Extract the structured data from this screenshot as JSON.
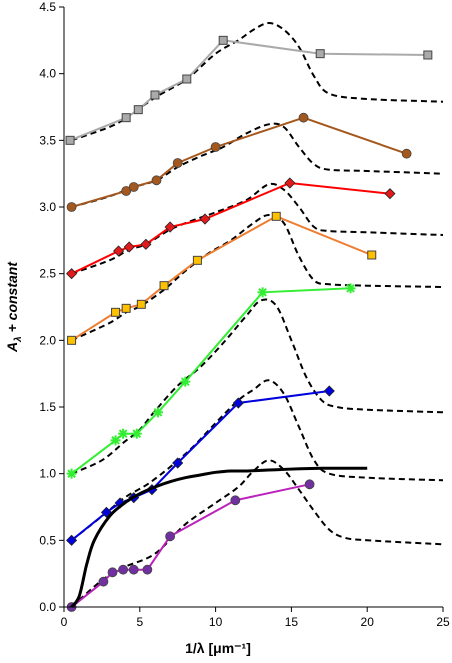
{
  "chart_data": {
    "type": "line",
    "xlabel": "1/λ    [μm⁻¹]",
    "ylabel": "Aλ + constant",
    "ylabel_main": "A",
    "ylabel_sub": "λ",
    "ylabel_rest": " + constant",
    "xlim": [
      0,
      25
    ],
    "ylim": [
      0,
      4.5
    ],
    "x_ticks": [
      0,
      5,
      10,
      15,
      20,
      25
    ],
    "y_ticks": [
      0.0,
      0.5,
      1.0,
      1.5,
      2.0,
      2.5,
      3.0,
      3.5,
      4.0,
      4.5
    ],
    "x_tick_labels": [
      "0",
      "5",
      "10",
      "15",
      "20",
      "25"
    ],
    "y_tick_labels": [
      "0.0",
      "0.5",
      "1.0",
      "1.5",
      "2.0",
      "2.5",
      "3.0",
      "3.5",
      "4.0",
      "4.5"
    ],
    "grid": false,
    "legend": "none",
    "series": [
      {
        "marker": "square",
        "color": "#aaaaaa",
        "marker_fill": "#aaaaaa",
        "x": [
          0.4,
          4.1,
          4.9,
          6.0,
          8.1,
          10.5,
          16.9,
          24.0
        ],
        "y": [
          3.5,
          3.67,
          3.73,
          3.84,
          3.96,
          4.25,
          4.15,
          4.14
        ]
      },
      {
        "marker": "circle",
        "color": "#a5581e",
        "marker_fill": "#a5581e",
        "x": [
          0.5,
          4.1,
          4.6,
          6.1,
          7.5,
          10.0,
          15.8,
          22.6
        ],
        "y": [
          3.0,
          3.12,
          3.15,
          3.2,
          3.33,
          3.45,
          3.67,
          3.4
        ]
      },
      {
        "marker": "diamond",
        "color": "#ff0000",
        "marker_fill": "#e31a1c",
        "x": [
          0.5,
          3.6,
          4.3,
          5.4,
          7.0,
          9.3,
          14.9,
          21.5
        ],
        "y": [
          2.5,
          2.67,
          2.7,
          2.72,
          2.85,
          2.91,
          3.18,
          3.1
        ]
      },
      {
        "marker": "square",
        "color": "#ed7d31",
        "marker_fill": "#ffc000",
        "x": [
          0.5,
          3.4,
          4.1,
          5.1,
          6.6,
          8.8,
          14.0,
          20.3
        ],
        "y": [
          2.0,
          2.21,
          2.24,
          2.27,
          2.41,
          2.6,
          2.93,
          2.64
        ]
      },
      {
        "marker": "star",
        "color": "#33ee33",
        "marker_fill": "#33ee33",
        "x": [
          0.5,
          3.4,
          3.9,
          4.8,
          6.2,
          8.0,
          13.1,
          18.9
        ],
        "y": [
          1.0,
          1.25,
          1.3,
          1.3,
          1.46,
          1.69,
          2.36,
          2.39
        ]
      },
      {
        "marker": "diamond",
        "color": "#0000dd",
        "marker_fill": "#0000dd",
        "x": [
          0.5,
          2.8,
          3.7,
          4.6,
          5.8,
          7.5,
          11.5,
          17.5
        ],
        "y": [
          0.5,
          0.71,
          0.78,
          0.82,
          0.88,
          1.08,
          1.53,
          1.62
        ]
      },
      {
        "marker": "circle",
        "color": "#bb22bb",
        "marker_fill": "#7030a0",
        "x": [
          0.5,
          2.6,
          3.2,
          3.9,
          4.6,
          5.5,
          7.0,
          11.3,
          16.2
        ],
        "y": [
          0.0,
          0.19,
          0.26,
          0.28,
          0.28,
          0.28,
          0.53,
          0.8,
          0.92
        ]
      },
      {
        "marker": "none",
        "color": "#000000",
        "dash": "solid",
        "x": [
          0.5,
          1.0,
          1.5,
          2.0,
          3.0,
          4.0,
          5.0,
          6.0,
          7.0,
          8.0,
          9.0,
          10.0,
          11.0,
          12.0,
          14.0,
          17.0,
          20.0
        ],
        "y": [
          0.0,
          0.08,
          0.32,
          0.5,
          0.68,
          0.78,
          0.85,
          0.9,
          0.94,
          0.97,
          0.99,
          1.01,
          1.02,
          1.02,
          1.03,
          1.04,
          1.04
        ]
      }
    ],
    "dashed_curves": [
      {
        "color": "#000000",
        "x": [
          0.5,
          3.0,
          4.1,
          6.0,
          8.1,
          10.0,
          11.5,
          12.5,
          13.5,
          14.5,
          15.5,
          16.5,
          17.5,
          20.0,
          25.0
        ],
        "y": [
          3.5,
          3.6,
          3.67,
          3.82,
          3.96,
          4.15,
          4.25,
          4.33,
          4.38,
          4.33,
          4.2,
          3.98,
          3.85,
          3.81,
          3.79
        ]
      },
      {
        "color": "#000000",
        "x": [
          0.5,
          3.0,
          4.6,
          6.1,
          7.5,
          9.0,
          10.5,
          12.0,
          13.5,
          14.5,
          15.5,
          16.5,
          17.5,
          20.0,
          25.0
        ],
        "y": [
          3.0,
          3.08,
          3.15,
          3.2,
          3.3,
          3.38,
          3.45,
          3.55,
          3.62,
          3.6,
          3.45,
          3.32,
          3.28,
          3.27,
          3.25
        ]
      },
      {
        "color": "#000000",
        "x": [
          0.5,
          3.0,
          4.3,
          5.4,
          7.0,
          8.5,
          10.0,
          12.0,
          13.5,
          14.5,
          15.5,
          16.5,
          17.5,
          20.0,
          25.0
        ],
        "y": [
          2.5,
          2.6,
          2.68,
          2.72,
          2.83,
          2.9,
          2.96,
          3.05,
          3.17,
          3.13,
          3.0,
          2.85,
          2.82,
          2.81,
          2.79
        ]
      },
      {
        "color": "#000000",
        "x": [
          0.5,
          3.0,
          4.1,
          5.1,
          6.6,
          8.0,
          9.5,
          11.0,
          12.5,
          13.5,
          14.5,
          15.5,
          16.5,
          17.5,
          20.0,
          25.0
        ],
        "y": [
          2.0,
          2.13,
          2.21,
          2.26,
          2.38,
          2.52,
          2.65,
          2.75,
          2.88,
          2.94,
          2.88,
          2.63,
          2.45,
          2.42,
          2.41,
          2.4
        ]
      },
      {
        "color": "#000000",
        "x": [
          0.5,
          2.5,
          4.0,
          5.0,
          6.0,
          7.5,
          9.0,
          10.5,
          12.0,
          13.0,
          14.0,
          15.0,
          16.0,
          17.0,
          18.0,
          20.0,
          25.0
        ],
        "y": [
          1.0,
          1.1,
          1.24,
          1.33,
          1.47,
          1.66,
          1.8,
          1.98,
          2.18,
          2.3,
          2.26,
          2.0,
          1.72,
          1.55,
          1.5,
          1.48,
          1.46
        ]
      },
      {
        "color": "#000000",
        "x": [
          0.5,
          2.5,
          4.0,
          5.5,
          7.0,
          8.5,
          10.0,
          11.5,
          12.5,
          13.5,
          14.5,
          15.5,
          16.5,
          17.5,
          20.0,
          25.0
        ],
        "y": [
          0.5,
          0.68,
          0.82,
          0.92,
          1.05,
          1.2,
          1.38,
          1.55,
          1.63,
          1.7,
          1.6,
          1.35,
          1.1,
          1.0,
          0.97,
          0.95
        ]
      },
      {
        "color": "#000000",
        "x": [
          0.5,
          2.5,
          4.0,
          6.0,
          8.0,
          10.0,
          11.5,
          12.5,
          13.5,
          14.5,
          15.5,
          16.5,
          17.5,
          18.5,
          20.0,
          25.0
        ],
        "y": [
          0.0,
          0.2,
          0.3,
          0.4,
          0.62,
          0.78,
          0.9,
          1.02,
          1.1,
          1.03,
          0.88,
          0.72,
          0.58,
          0.52,
          0.5,
          0.47
        ]
      }
    ]
  }
}
